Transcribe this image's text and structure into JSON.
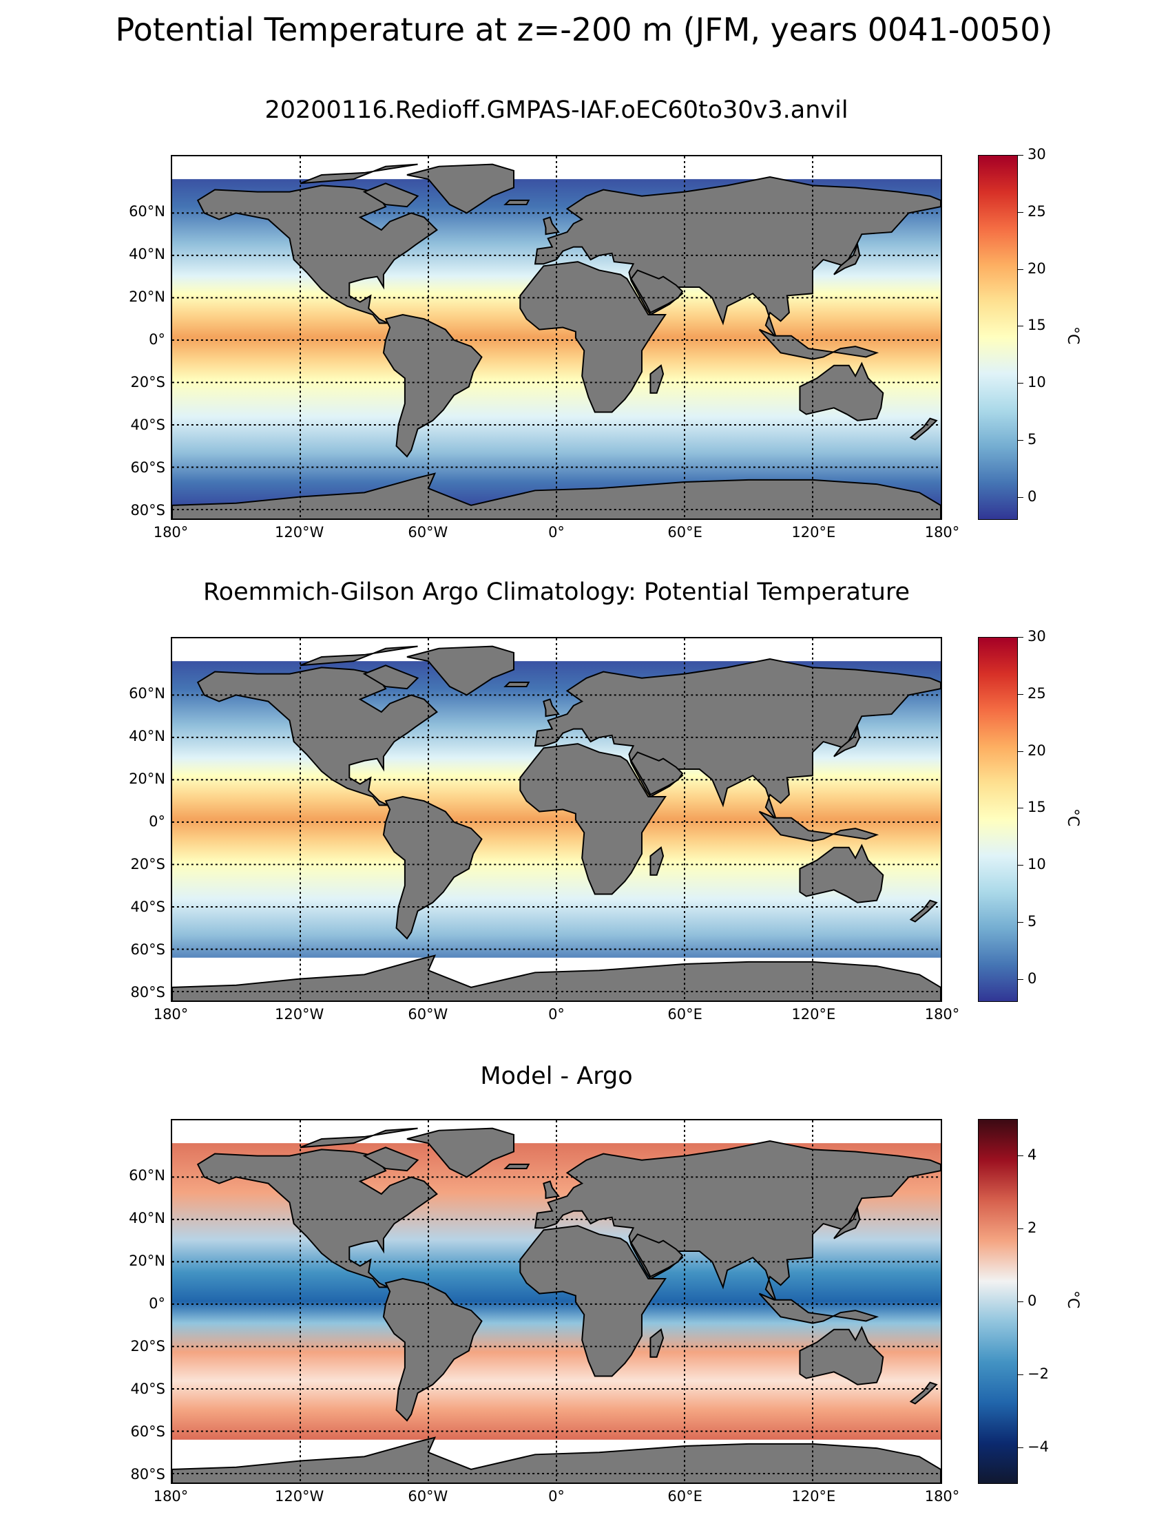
{
  "suptitle": "Potential Temperature at z=-200 m (JFM, years 0041-0050)",
  "panels": [
    {
      "id": "model",
      "title": "20200116.Redioff.GMPAS-IAF.oEC60to30v3.anvil",
      "colorbar": {
        "cmap": "RdYlBu_r",
        "min": -2,
        "max": 30,
        "ticks": [
          "30",
          "25",
          "20",
          "15",
          "10",
          "5",
          "0"
        ],
        "label": "°C"
      },
      "colors": {
        "cold": "#313695",
        "mid": "#ffffbf",
        "warm": "#d7301f"
      }
    },
    {
      "id": "obs",
      "title": "Roemmich-Gilson Argo Climatology: Potential Temperature",
      "colorbar": {
        "cmap": "RdYlBu_r",
        "min": -2,
        "max": 30,
        "ticks": [
          "30",
          "25",
          "20",
          "15",
          "10",
          "5",
          "0"
        ],
        "label": "°C"
      },
      "colors": {
        "cold": "#313695",
        "mid": "#ffffbf",
        "warm": "#d7301f"
      }
    },
    {
      "id": "bias",
      "title": "Model - Argo",
      "colorbar": {
        "cmap": "RdBu_r",
        "min": -5,
        "max": 5,
        "ticks": [
          "4",
          "2",
          "0",
          "−2",
          "−4"
        ],
        "label": "°C"
      },
      "colors": {
        "cold": "#0c2a70",
        "mid": "#f2f2f2",
        "warm": "#9b1020"
      }
    }
  ],
  "map": {
    "land_color": "#7a7a7a",
    "missing_color": "#ffffff",
    "lat_labels": [
      "60°N",
      "40°N",
      "20°N",
      "0°",
      "20°S",
      "40°S",
      "60°S",
      "80°S"
    ],
    "lon_labels": [
      "180°",
      "120°W",
      "60°W",
      "0°",
      "60°E",
      "120°E",
      "180°"
    ]
  }
}
